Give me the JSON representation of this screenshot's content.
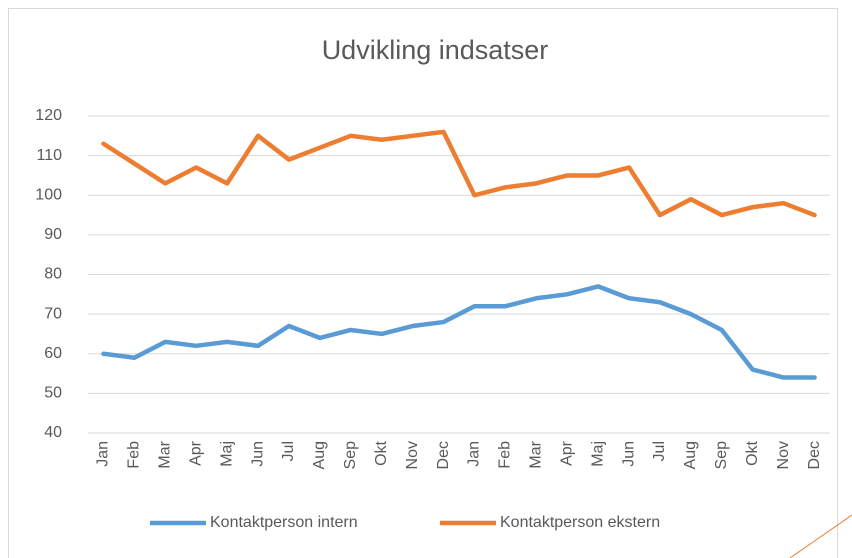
{
  "chart_data": {
    "type": "line",
    "title": "Udvikling indsatser",
    "categories": [
      "Jan",
      "Feb",
      "Mar",
      "Apr",
      "Maj",
      "Jun",
      "Jul",
      "Aug",
      "Sep",
      "Okt",
      "Nov",
      "Dec",
      "Jan",
      "Feb",
      "Mar",
      "Apr",
      "Maj",
      "Jun",
      "Jul",
      "Aug",
      "Sep",
      "Okt",
      "Nov",
      "Dec"
    ],
    "series": [
      {
        "name": "Kontaktperson intern",
        "color": "#5b9bd5",
        "values": [
          60,
          59,
          63,
          62,
          63,
          62,
          67,
          64,
          66,
          65,
          67,
          68,
          72,
          72,
          74,
          75,
          77,
          74,
          73,
          70,
          66,
          56,
          54,
          54
        ]
      },
      {
        "name": "Kontaktperson ekstern",
        "color": "#ed7d31",
        "values": [
          113,
          108,
          103,
          107,
          103,
          115,
          109,
          112,
          115,
          114,
          115,
          116,
          100,
          102,
          103,
          105,
          105,
          107,
          95,
          99,
          95,
          97,
          98,
          95
        ]
      }
    ],
    "ylim": [
      40,
      120
    ],
    "yticks": [
      40,
      50,
      60,
      70,
      80,
      90,
      100,
      110,
      120
    ],
    "grid": true,
    "legend": "bottom"
  }
}
